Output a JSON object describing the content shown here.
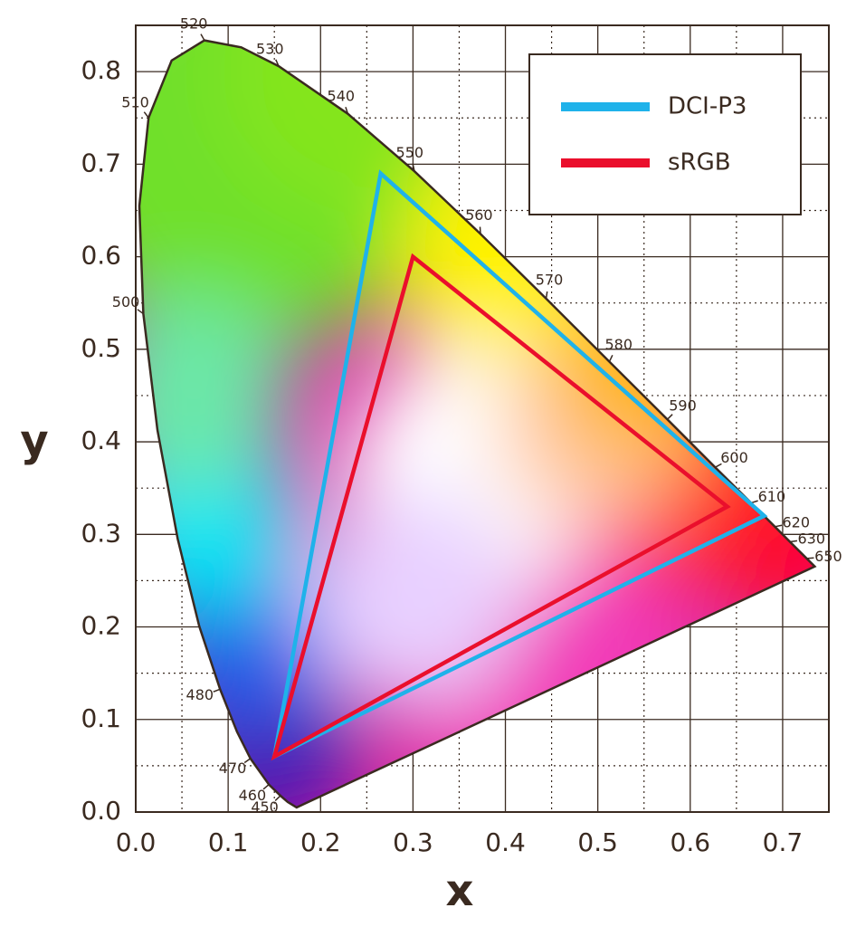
{
  "chart_data": {
    "type": "line",
    "xlabel": "x",
    "ylabel": "y",
    "xlim": [
      0,
      0.75
    ],
    "ylim": [
      0,
      0.85
    ],
    "xticks": [
      {
        "value": 0,
        "label": "0.0"
      },
      0.1,
      0.2,
      0.3,
      0.4,
      0.5,
      0.6,
      0.7
    ],
    "yticks": [
      {
        "value": 0,
        "label": "0.0"
      },
      0.1,
      0.2,
      0.3,
      0.4,
      0.5,
      0.6,
      0.7,
      0.8
    ],
    "xminor": [
      0.05,
      0.15,
      0.25,
      0.35,
      0.45,
      0.55,
      0.65
    ],
    "yminor": [
      0.05,
      0.15,
      0.25,
      0.35,
      0.45,
      0.55,
      0.65,
      0.75
    ],
    "grid": true,
    "legend": "upper right",
    "locus": {
      "color": "#3a2a20",
      "x": [
        0.1741,
        0.1644,
        0.1566,
        0.144,
        0.1241,
        0.1096,
        0.0913,
        0.0687,
        0.0454,
        0.0235,
        0.0082,
        0.0039,
        0.0139,
        0.0389,
        0.0743,
        0.1142,
        0.1547,
        0.2296,
        0.3016,
        0.3731,
        0.4441,
        0.5125,
        0.5752,
        0.627,
        0.6658,
        0.6915,
        0.7079,
        0.726,
        0.7347
      ],
      "values": [
        0.005,
        0.0109,
        0.0177,
        0.0297,
        0.0578,
        0.0868,
        0.1327,
        0.2007,
        0.295,
        0.4127,
        0.5384,
        0.6548,
        0.7502,
        0.812,
        0.8338,
        0.8262,
        0.8059,
        0.7543,
        0.6923,
        0.6245,
        0.5547,
        0.4866,
        0.4242,
        0.3725,
        0.334,
        0.3083,
        0.292,
        0.274,
        0.2653
      ],
      "point_labels": [
        null,
        null,
        450,
        460,
        470,
        null,
        480,
        null,
        null,
        null,
        500,
        null,
        510,
        null,
        520,
        null,
        530,
        540,
        550,
        560,
        570,
        580,
        590,
        600,
        610,
        620,
        630,
        650,
        null
      ]
    },
    "series": [
      {
        "name": "DCI-P3",
        "color": "#1fb2ea",
        "x": [
          0.68,
          0.265,
          0.15
        ],
        "values": [
          0.32,
          0.69,
          0.06
        ]
      },
      {
        "name": "sRGB",
        "color": "#ea0f2c",
        "x": [
          0.64,
          0.3,
          0.15
        ],
        "values": [
          0.33,
          0.6,
          0.06
        ]
      }
    ]
  }
}
